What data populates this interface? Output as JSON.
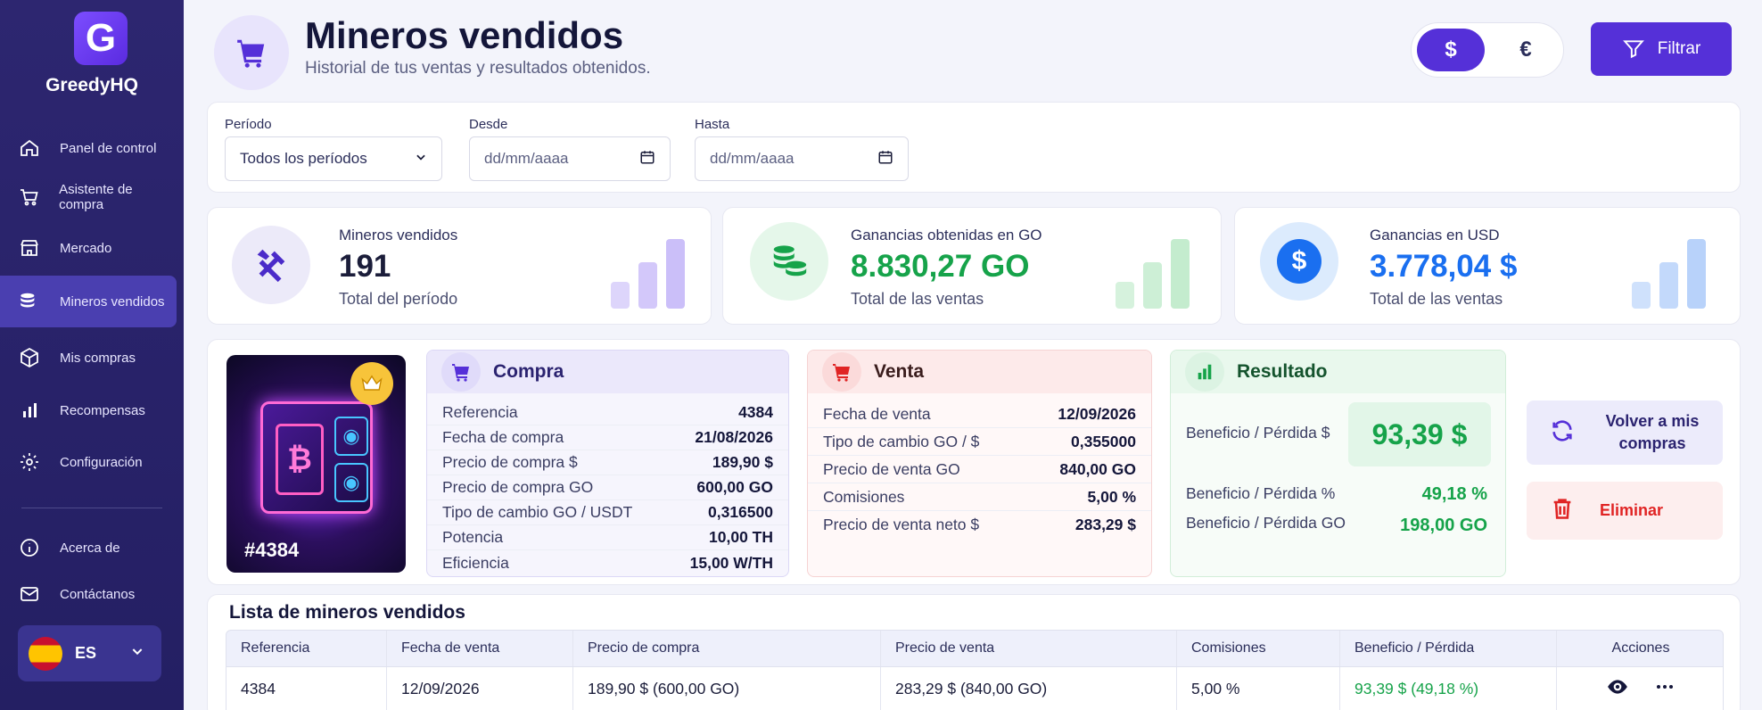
{
  "app": {
    "logo_letter": "G",
    "name": "GreedyHQ"
  },
  "sidebar": {
    "items": [
      {
        "label": "Panel de control",
        "icon": "home-icon"
      },
      {
        "label": "Asistente de compra",
        "icon": "cart-icon"
      },
      {
        "label": "Mercado",
        "icon": "store-icon"
      },
      {
        "label": "Mineros vendidos",
        "icon": "coins-icon",
        "active": true
      },
      {
        "label": "Mis compras",
        "icon": "box-icon"
      },
      {
        "label": "Recompensas",
        "icon": "bar-chart-icon"
      },
      {
        "label": "Configuración",
        "icon": "gear-icon"
      }
    ],
    "bottom_items": [
      {
        "label": "Acerca de",
        "icon": "info-icon"
      },
      {
        "label": "Contáctanos",
        "icon": "mail-icon"
      }
    ],
    "language": {
      "code": "ES",
      "flag": "spain-flag-icon"
    }
  },
  "header": {
    "title": "Mineros vendidos",
    "subtitle": "Historial de tus ventas y resultados obtenidos.",
    "currency": {
      "usd": "$",
      "eur": "€",
      "selected": "$"
    },
    "filter_label": "Filtrar"
  },
  "filters": {
    "period_label": "Período",
    "period_value": "Todos los períodos",
    "from_label": "Desde",
    "from_placeholder": "dd/mm/aaaa",
    "to_label": "Hasta",
    "to_placeholder": "dd/mm/aaaa"
  },
  "stats": [
    {
      "title": "Mineros vendidos",
      "value": "191",
      "sub": "Total del período",
      "color": "#1b1d3a",
      "accent": "#5530d8"
    },
    {
      "title": "Ganancias obtenidas en GO",
      "value": "8.830,27 GO",
      "sub": "Total de las ventas",
      "color": "#16a34a",
      "accent": "#16a34a"
    },
    {
      "title": "Ganancias en USD",
      "value": "3.778,04 $",
      "sub": "Total de las ventas",
      "color": "#1a6ff0",
      "accent": "#1a6ff0"
    }
  ],
  "detail": {
    "nft_tag": "#4384",
    "compra": {
      "title": "Compra",
      "rows": [
        {
          "k": "Referencia",
          "v": "4384"
        },
        {
          "k": "Fecha de compra",
          "v": "21/08/2026"
        },
        {
          "k": "Precio de compra $",
          "v": "189,90 $"
        },
        {
          "k": "Precio de compra GO",
          "v": "600,00 GO"
        },
        {
          "k": "Tipo de cambio GO / USDT",
          "v": "0,316500"
        },
        {
          "k": "Potencia",
          "v": "10,00 TH"
        },
        {
          "k": "Eficiencia",
          "v": "15,00 W/TH"
        }
      ]
    },
    "venta": {
      "title": "Venta",
      "rows": [
        {
          "k": "Fecha de venta",
          "v": "12/09/2026"
        },
        {
          "k": "Tipo de cambio GO / $",
          "v": "0,355000"
        },
        {
          "k": "Precio de venta GO",
          "v": "840,00 GO"
        },
        {
          "k": "Comisiones",
          "v": "5,00 %"
        },
        {
          "k": "Precio de venta neto $",
          "v": "283,29 $"
        }
      ]
    },
    "resultado": {
      "title": "Resultado",
      "profit_usd_label": "Beneficio / Pérdida $",
      "profit_usd_value": "93,39 $",
      "profit_pct_label": "Beneficio / Pérdida %",
      "profit_pct_value": "49,18 %",
      "profit_go_label": "Beneficio / Pérdida GO",
      "profit_go_value": "198,00 GO"
    },
    "actions": {
      "back_label": "Volver a mis compras",
      "delete_label": "Eliminar"
    }
  },
  "table": {
    "title": "Lista de mineros vendidos",
    "columns": [
      "Referencia",
      "Fecha de venta",
      "Precio de compra",
      "Precio de venta",
      "Comisiones",
      "Beneficio / Pérdida",
      "Acciones"
    ],
    "rows": [
      [
        "4384",
        "12/09/2026",
        "189,90 $ (600,00 GO)",
        "283,29 $ (840,00 GO)",
        "5,00 %",
        "93,39 $ (49,18 %)"
      ]
    ]
  }
}
